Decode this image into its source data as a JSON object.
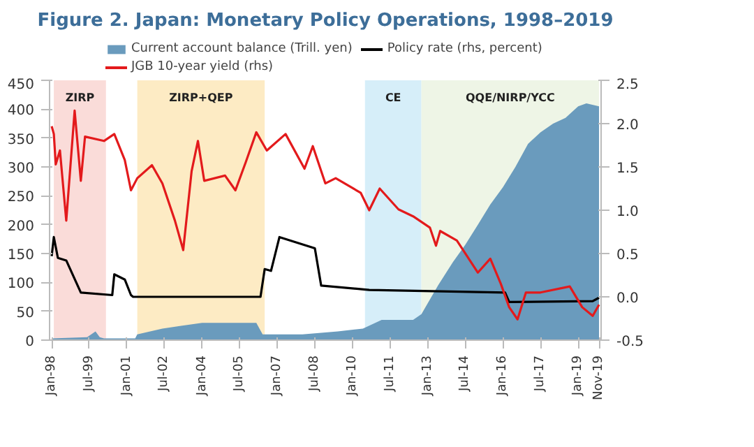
{
  "chart_data": {
    "type": "area",
    "title": "Figure 2. Japan: Monetary Policy Operations, 1998–2019",
    "legend": "top",
    "grid": false,
    "xlim": [
      "1997-12",
      "2019-12"
    ],
    "xticks": [
      {
        "value": "1998-01",
        "label": "Jan-98"
      },
      {
        "value": "1999-07",
        "label": "Jul-99"
      },
      {
        "value": "2001-01",
        "label": "Jan-01"
      },
      {
        "value": "2002-07",
        "label": "Jul-02"
      },
      {
        "value": "2004-01",
        "label": "Jan-04"
      },
      {
        "value": "2005-07",
        "label": "Jul-05"
      },
      {
        "value": "2007-01",
        "label": "Jan-07"
      },
      {
        "value": "2008-07",
        "label": "Jul-08"
      },
      {
        "value": "2010-01",
        "label": "Jan-10"
      },
      {
        "value": "2011-07",
        "label": "Jul-11"
      },
      {
        "value": "2013-01",
        "label": "Jan-13"
      },
      {
        "value": "2014-07",
        "label": "Jul-14"
      },
      {
        "value": "2016-01",
        "label": "Jan-16"
      },
      {
        "value": "2017-07",
        "label": "Jul-17"
      },
      {
        "value": "2019-01",
        "label": "Jan-19"
      },
      {
        "value": "2019-11",
        "label": "Nov-19"
      }
    ],
    "ylim": [
      0,
      450
    ],
    "yticks": [
      0,
      50,
      100,
      150,
      200,
      250,
      300,
      350,
      400,
      450
    ],
    "y2lim": [
      -0.5,
      2.5
    ],
    "y2ticks": [
      -0.5,
      {
        "value": 0,
        "label": "0.0"
      },
      0.5,
      {
        "value": 1,
        "label": "1.0"
      },
      1.5,
      {
        "value": 2,
        "label": "2.0"
      },
      2.5
    ],
    "bands": [
      {
        "axis": "x",
        "from": "1998-02",
        "to": "2000-03",
        "label": "ZIRP",
        "color": "#fadcd9"
      },
      {
        "axis": "x",
        "from": "2001-06",
        "to": "2006-07",
        "label": "ZIRP+QEP",
        "color": "#fdebc4"
      },
      {
        "axis": "x",
        "from": "2010-07",
        "to": "2012-10",
        "label": "CE",
        "color": "#d6eef9"
      },
      {
        "axis": "x",
        "from": "2012-10",
        "to": "2019-11",
        "label": "QQE/NIRP/YCC",
        "color": "#eef5e6"
      }
    ],
    "series": [
      {
        "name": "Current account balance (Trill. yen)",
        "color": "#6a9bbd",
        "x": [
          "1998-01",
          "1999-06",
          "1999-10",
          "1999-12",
          "2000-02",
          "2001-05",
          "2001-06",
          "2002-06",
          "2004-01",
          "2006-03",
          "2006-06",
          "2008-01",
          "2009-06",
          "2010-06",
          "2011-03",
          "2012-06",
          "2012-10",
          "2013-06",
          "2014-01",
          "2014-07",
          "2015-01",
          "2015-07",
          "2016-01",
          "2016-07",
          "2017-01",
          "2017-07",
          "2018-01",
          "2018-07",
          "2019-01",
          "2019-05",
          "2019-11"
        ],
        "values": [
          3,
          5,
          15,
          5,
          3,
          3,
          10,
          20,
          30,
          30,
          10,
          10,
          15,
          20,
          35,
          35,
          45,
          95,
          135,
          165,
          200,
          235,
          265,
          300,
          340,
          360,
          375,
          385,
          405,
          410,
          405
        ]
      },
      {
        "name": "Policy rate (rhs, percent)",
        "type": "line",
        "axis": "y2",
        "color": "#000000",
        "x": [
          "1998-01",
          "1998-02",
          "1998-04",
          "1998-08",
          "1999-03",
          "2000-06",
          "2000-07",
          "2000-12",
          "2001-03",
          "2001-04",
          "2006-05",
          "2006-07",
          "2006-10",
          "2007-02",
          "2008-07",
          "2008-10",
          "2010-09",
          "2016-02",
          "2016-04",
          "2019-08",
          "2019-11"
        ],
        "values": [
          0.47,
          0.69,
          0.45,
          0.42,
          0.05,
          0.02,
          0.26,
          0.2,
          0.02,
          0,
          0,
          0.32,
          0.3,
          0.69,
          0.56,
          0.13,
          0.08,
          0.05,
          -0.06,
          -0.05,
          -0.01
        ]
      },
      {
        "name": "JGB 10-year yield (rhs)",
        "type": "line",
        "axis": "y2",
        "color": "#e31a1c",
        "x": [
          "1998-01",
          "1998-02",
          "1998-03",
          "1998-05",
          "1998-08",
          "1998-12",
          "1999-03",
          "1999-05",
          "2000-02",
          "2000-07",
          "2000-12",
          "2001-03",
          "2001-06",
          "2002-01",
          "2002-06",
          "2002-12",
          "2003-04",
          "2003-08",
          "2003-11",
          "2004-02",
          "2004-12",
          "2005-05",
          "2005-10",
          "2006-03",
          "2006-08",
          "2007-05",
          "2008-02",
          "2008-06",
          "2008-12",
          "2009-05",
          "2010-05",
          "2010-09",
          "2011-02",
          "2011-11",
          "2012-06",
          "2013-02",
          "2013-05",
          "2013-07",
          "2014-03",
          "2015-01",
          "2015-07",
          "2015-12",
          "2016-04",
          "2016-08",
          "2016-12",
          "2017-07",
          "2018-09",
          "2019-03",
          "2019-08",
          "2019-11"
        ],
        "values": [
          1.97,
          1.88,
          1.53,
          1.69,
          0.88,
          2.15,
          1.34,
          1.85,
          1.8,
          1.88,
          1.58,
          1.23,
          1.37,
          1.52,
          1.31,
          0.88,
          0.54,
          1.45,
          1.8,
          1.34,
          1.4,
          1.23,
          1.56,
          1.9,
          1.69,
          1.88,
          1.48,
          1.74,
          1.31,
          1.37,
          1.2,
          1.0,
          1.25,
          1.01,
          0.93,
          0.8,
          0.59,
          0.76,
          0.65,
          0.28,
          0.44,
          0.15,
          -0.12,
          -0.26,
          0.05,
          0.05,
          0.12,
          -0.12,
          -0.22,
          -0.09
        ]
      }
    ]
  }
}
